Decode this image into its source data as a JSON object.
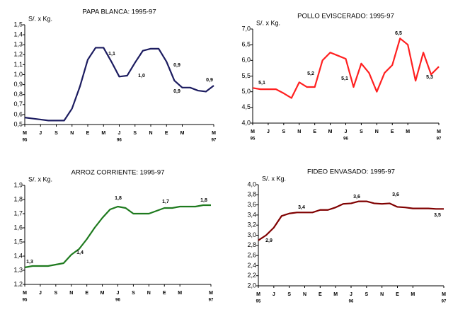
{
  "chart_data": [
    {
      "type": "line",
      "title": "PAPA BLANCA: 1995-97",
      "ylabel": "S/. x Kg.",
      "categories": [
        "M",
        null,
        "J",
        null,
        "S",
        null,
        "N",
        null,
        "E",
        null,
        "M",
        null,
        "J",
        null,
        "S",
        null,
        "N",
        null,
        "E",
        null,
        "M",
        null,
        null,
        null,
        "M"
      ],
      "year_labels": [
        "95",
        "96",
        "97"
      ],
      "series": [
        {
          "name": "PAPA BLANCA",
          "color": "#1c1c60",
          "values": [
            0.57,
            0.56,
            0.55,
            0.54,
            0.54,
            0.54,
            0.66,
            0.88,
            1.15,
            1.27,
            1.27,
            1.13,
            0.98,
            0.99,
            1.12,
            1.24,
            1.26,
            1.26,
            1.13,
            0.94,
            0.87,
            0.87,
            0.84,
            0.83,
            0.89
          ]
        }
      ],
      "annotations": [
        "1,1",
        "1,0",
        "0,9",
        "0,9",
        "0,9"
      ],
      "ylim": [
        0.5,
        1.5
      ],
      "yticks": [
        {
          "value": 0.5,
          "label": "0,5"
        },
        {
          "value": 0.6,
          "label": "0,6"
        },
        {
          "value": 0.7,
          "label": "0,7"
        },
        {
          "value": 0.8,
          "label": "0,8"
        },
        {
          "value": 0.9,
          "label": "0,9"
        },
        {
          "value": 1.0,
          "label": "1,0"
        },
        {
          "value": 1.1,
          "label": "1,1"
        },
        {
          "value": 1.2,
          "label": "1,2"
        },
        {
          "value": 1.3,
          "label": "1,3"
        },
        {
          "value": 1.4,
          "label": "1,4"
        },
        {
          "value": 1.5,
          "label": "1,5"
        }
      ]
    },
    {
      "type": "line",
      "title": "POLLO EVISCERADO: 1995-97",
      "ylabel": "S/. x Kg.",
      "categories": [
        "M",
        null,
        "J",
        null,
        "S",
        null,
        "N",
        null,
        "E",
        null,
        "M",
        null,
        "J",
        null,
        "S",
        null,
        "N",
        null,
        "E",
        null,
        "M",
        null,
        null,
        null,
        "M"
      ],
      "year_labels": [
        "95",
        "96",
        "97"
      ],
      "series": [
        {
          "name": "POLLO EVISCERADO",
          "color": "#ff2020",
          "values": [
            5.12,
            5.08,
            5.08,
            5.08,
            4.95,
            4.8,
            5.3,
            5.15,
            5.15,
            6.0,
            6.25,
            6.15,
            6.05,
            5.15,
            5.9,
            5.6,
            5.0,
            5.6,
            5.85,
            6.7,
            6.5,
            5.35,
            6.25,
            5.55,
            5.8
          ]
        }
      ],
      "annotations": [
        "5,1",
        "5,2",
        "5,1",
        "6,5",
        "5,3"
      ],
      "ylim": [
        4.0,
        7.0
      ],
      "yticks": [
        {
          "value": 4.0,
          "label": "4,0"
        },
        {
          "value": 4.5,
          "label": "4,5"
        },
        {
          "value": 5.0,
          "label": "5,0"
        },
        {
          "value": 5.5,
          "label": "5,5"
        },
        {
          "value": 6.0,
          "label": "6,0"
        },
        {
          "value": 6.5,
          "label": "6,5"
        },
        {
          "value": 7.0,
          "label": "7,0"
        }
      ]
    },
    {
      "type": "line",
      "title": "ARROZ CORRIENTE: 1995-97",
      "ylabel": "S/. x Kg.",
      "categories": [
        "M",
        null,
        "J",
        null,
        "S",
        null,
        "N",
        null,
        "E",
        null,
        "M",
        null,
        "J",
        null,
        "S",
        null,
        "N",
        null,
        "E",
        null,
        "M",
        null,
        null,
        null,
        "M"
      ],
      "year_labels": [
        "95",
        "96",
        "97"
      ],
      "series": [
        {
          "name": "ARROZ CORRIENTE",
          "color": "#1e7a1e",
          "values": [
            1.32,
            1.33,
            1.33,
            1.33,
            1.34,
            1.35,
            1.41,
            1.45,
            1.52,
            1.6,
            1.67,
            1.73,
            1.75,
            1.74,
            1.7,
            1.7,
            1.7,
            1.72,
            1.74,
            1.74,
            1.75,
            1.75,
            1.75,
            1.76,
            1.76
          ]
        }
      ],
      "annotations": [
        "1,3",
        "1,4",
        "1,8",
        "1,7",
        "1,8"
      ],
      "ylim": [
        1.2,
        1.9
      ],
      "yticks": [
        {
          "value": 1.2,
          "label": "1,2"
        },
        {
          "value": 1.3,
          "label": "1,3"
        },
        {
          "value": 1.4,
          "label": "1,4"
        },
        {
          "value": 1.5,
          "label": "1,5"
        },
        {
          "value": 1.6,
          "label": "1,6"
        },
        {
          "value": 1.7,
          "label": "1,7"
        },
        {
          "value": 1.8,
          "label": "1,8"
        },
        {
          "value": 1.9,
          "label": "1,9"
        }
      ]
    },
    {
      "type": "line",
      "title": "FIDEO ENVASADO: 1995-97",
      "ylabel": "S/. x Kg.",
      "categories": [
        "M",
        null,
        "J",
        null,
        "S",
        null,
        "N",
        null,
        "E",
        null,
        "M",
        null,
        "J",
        null,
        "S",
        null,
        "N",
        null,
        "E",
        null,
        "M",
        null,
        null,
        null,
        "M"
      ],
      "year_labels": [
        "95",
        "96",
        "97"
      ],
      "series": [
        {
          "name": "FIDEO ENVASADO",
          "color": "#800000",
          "values": [
            2.9,
            3.0,
            3.15,
            3.38,
            3.43,
            3.45,
            3.45,
            3.45,
            3.5,
            3.5,
            3.55,
            3.62,
            3.63,
            3.67,
            3.67,
            3.63,
            3.62,
            3.63,
            3.56,
            3.55,
            3.53,
            3.53,
            3.53,
            3.52,
            3.52
          ]
        }
      ],
      "annotations": [
        "2,9",
        "3,4",
        "3,6",
        "3,6",
        "3,5"
      ],
      "ylim": [
        2.0,
        4.0
      ],
      "yticks": [
        {
          "value": 2.0,
          "label": "2,0"
        },
        {
          "value": 2.2,
          "label": "2,2"
        },
        {
          "value": 2.4,
          "label": "2,4"
        },
        {
          "value": 2.6,
          "label": "2,6"
        },
        {
          "value": 2.8,
          "label": "2,8"
        },
        {
          "value": 3.0,
          "label": "3,0"
        },
        {
          "value": 3.2,
          "label": "3,2"
        },
        {
          "value": 3.4,
          "label": "3,4"
        },
        {
          "value": 3.6,
          "label": "3,6"
        },
        {
          "value": 3.8,
          "label": "3,8"
        },
        {
          "value": 4.0,
          "label": "4,0"
        }
      ]
    }
  ]
}
